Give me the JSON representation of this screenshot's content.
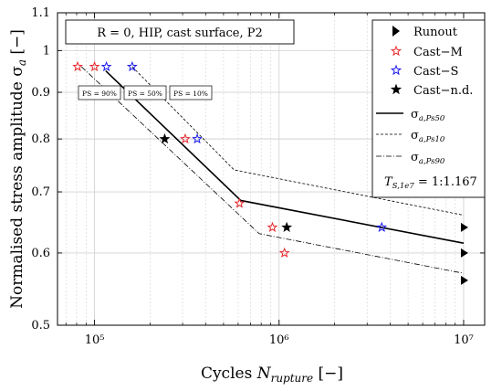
{
  "chart_data": {
    "type": "scatter",
    "xscale": "log",
    "yscale": "log",
    "xlim": [
      63000,
      13000000
    ],
    "ylim": [
      0.5,
      1.1
    ],
    "grid": true,
    "ylabel": "Normalised stress amplitude σa [−]",
    "xlabel": "Cycles Nrupture [−]",
    "yticks": [
      {
        "value": 0.5,
        "label": "0.5"
      },
      {
        "value": 0.6,
        "label": "0.6"
      },
      {
        "value": 0.7,
        "label": "0.7"
      },
      {
        "value": 0.8,
        "label": "0.8"
      },
      {
        "value": 0.9,
        "label": "0.9"
      },
      {
        "value": 1.0,
        "label": "1"
      },
      {
        "value": 1.1,
        "label": "1.1"
      }
    ],
    "xticks": [
      {
        "value": 100000,
        "label": "10⁵"
      },
      {
        "value": 1000000,
        "label": "10⁶"
      },
      {
        "value": 10000000,
        "label": "10⁷"
      }
    ],
    "annotation": "R = 0, HIP, cast surface, P2",
    "ts_label": "TS,1e7 = 1:1.167",
    "ps_labels": [
      "PS = 90%",
      "PS = 50%",
      "PS = 10%"
    ],
    "legend_position": "top-right",
    "series": [
      {
        "name": "Runout",
        "marker": "triangle-right",
        "color": "#000000",
        "points": [
          [
            10000000,
            0.64
          ],
          [
            10000000,
            0.6
          ],
          [
            10000000,
            0.56
          ]
        ]
      },
      {
        "name": "Cast−M",
        "marker": "star",
        "color": "#e8262b",
        "points": [
          [
            81000,
            0.96
          ],
          [
            100000,
            0.96
          ],
          [
            310000,
            0.8
          ],
          [
            610000,
            0.68
          ],
          [
            920000,
            0.64
          ],
          [
            1070000,
            0.6
          ]
        ]
      },
      {
        "name": "Cast−S",
        "marker": "star",
        "color": "#1a1aee",
        "points": [
          [
            116000,
            0.96
          ],
          [
            160000,
            0.96
          ],
          [
            360000,
            0.8
          ],
          [
            3600000,
            0.64
          ]
        ]
      },
      {
        "name": "Cast−n.d.",
        "marker": "star",
        "color": "#000000",
        "points": [
          [
            240000,
            0.8
          ],
          [
            1100000,
            0.64
          ]
        ]
      }
    ],
    "curves": [
      {
        "name": "σa,Ps50",
        "style": "solid",
        "points": [
          [
            115000,
            0.95
          ],
          [
            620000,
            0.685
          ],
          [
            10000000,
            0.615
          ]
        ]
      },
      {
        "name": "σa,Ps10",
        "style": "dashed",
        "points": [
          [
            160000,
            0.96
          ],
          [
            570000,
            0.74
          ],
          [
            10000000,
            0.66
          ]
        ]
      },
      {
        "name": "σa,Ps90",
        "style": "dashdot",
        "points": [
          [
            85000,
            0.96
          ],
          [
            780000,
            0.63
          ],
          [
            10000000,
            0.57
          ]
        ]
      }
    ]
  }
}
